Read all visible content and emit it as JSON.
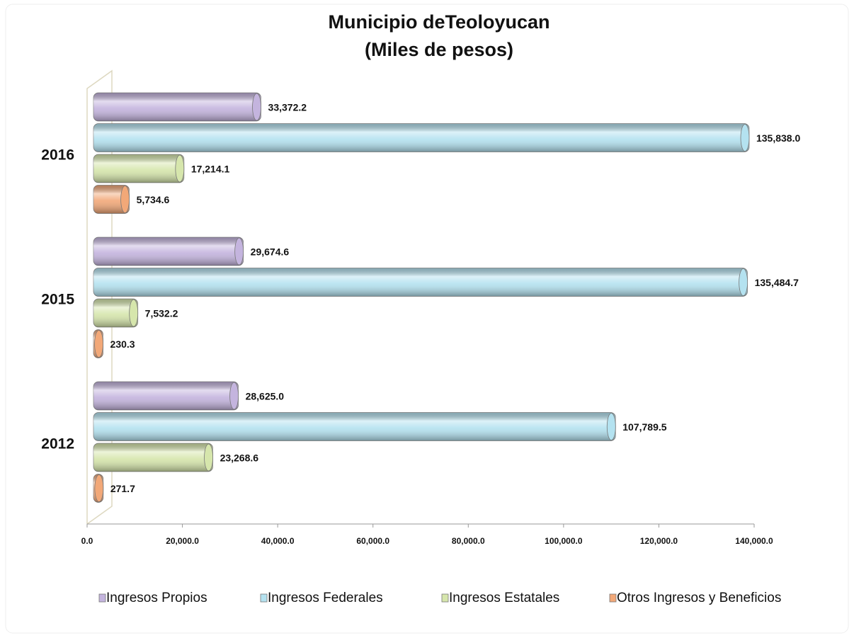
{
  "chart_data": {
    "type": "bar",
    "orientation": "horizontal",
    "title": "Municipio deTeoloyucan",
    "subtitle": "(Miles de pesos)",
    "categories": [
      "2016",
      "2015",
      "2012"
    ],
    "series": [
      {
        "name": "Ingresos Propios",
        "color": "#c4b4de",
        "values": [
          33372.2,
          29674.6,
          28625.0
        ],
        "value_labels": [
          "33,372.2",
          "29,674.6",
          "28,625.0"
        ]
      },
      {
        "name": "Ingresos Federales",
        "color": "#b4e2f0",
        "values": [
          135838.0,
          135484.7,
          107789.5
        ],
        "value_labels": [
          "135,838.0",
          "135,484.7",
          "107,789.5"
        ]
      },
      {
        "name": "Ingresos Estatales",
        "color": "#d6e6ac",
        "values": [
          17214.1,
          7532.2,
          23268.6
        ],
        "value_labels": [
          "17,214.1",
          "7,532.2",
          "23,268.6"
        ]
      },
      {
        "name": "Otros Ingresos y Beneficios",
        "color": "#f2a878",
        "values": [
          5734.6,
          230.3,
          271.7
        ],
        "value_labels": [
          "5,734.6",
          "230.3",
          "271.7"
        ]
      }
    ],
    "xlim": [
      0,
      140000
    ],
    "xticks": [
      {
        "value": 0,
        "label": "0.0"
      },
      {
        "value": 20000,
        "label": "20,000.0"
      },
      {
        "value": 40000,
        "label": "40,000.0"
      },
      {
        "value": 60000,
        "label": "60,000.0"
      },
      {
        "value": 80000,
        "label": "80,000.0"
      },
      {
        "value": 100000,
        "label": "100,000.0"
      },
      {
        "value": 120000,
        "label": "120,000.0"
      },
      {
        "value": 140000,
        "label": "140,000.0"
      }
    ],
    "legend": "bottom"
  }
}
